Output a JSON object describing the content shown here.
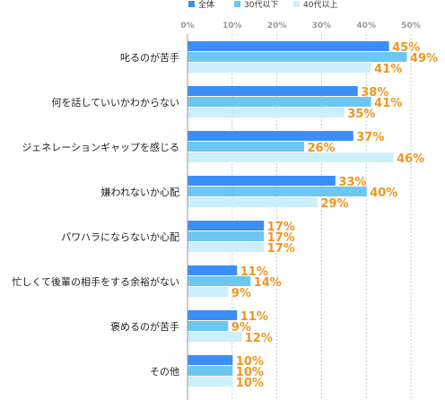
{
  "colors": {
    "series": [
      "#3b8ef7",
      "#6cc8f2",
      "#ccf0fb"
    ],
    "value_label": "#f0961e",
    "grid": "#c8c8c8",
    "axis": "#999999"
  },
  "chart_data": {
    "type": "bar",
    "orientation": "horizontal",
    "title": "",
    "xlabel": "",
    "ylabel": "",
    "xlim": [
      0,
      50
    ],
    "ticks": [
      "0%",
      "10%",
      "20%",
      "30%",
      "40%",
      "50%"
    ],
    "tick_values": [
      0,
      10,
      20,
      30,
      40,
      50
    ],
    "grid": true,
    "legend_position": "top",
    "categories": [
      "叱るのが苦手",
      "何を話していいかわからない",
      "ジェネレーションギャップを感じる",
      "嫌われないか心配",
      "パワハラにならないか心配",
      "忙しくて後輩の相手をする余裕がない",
      "褒めるのが苦手",
      "その他"
    ],
    "series": [
      {
        "name": "全体",
        "values": [
          45,
          38,
          37,
          33,
          17,
          11,
          11,
          10
        ]
      },
      {
        "name": "30代以下",
        "values": [
          49,
          41,
          26,
          40,
          17,
          14,
          9,
          10
        ]
      },
      {
        "name": "40代以上",
        "values": [
          41,
          35,
          46,
          29,
          17,
          9,
          12,
          10
        ]
      }
    ],
    "value_suffix": "%"
  }
}
